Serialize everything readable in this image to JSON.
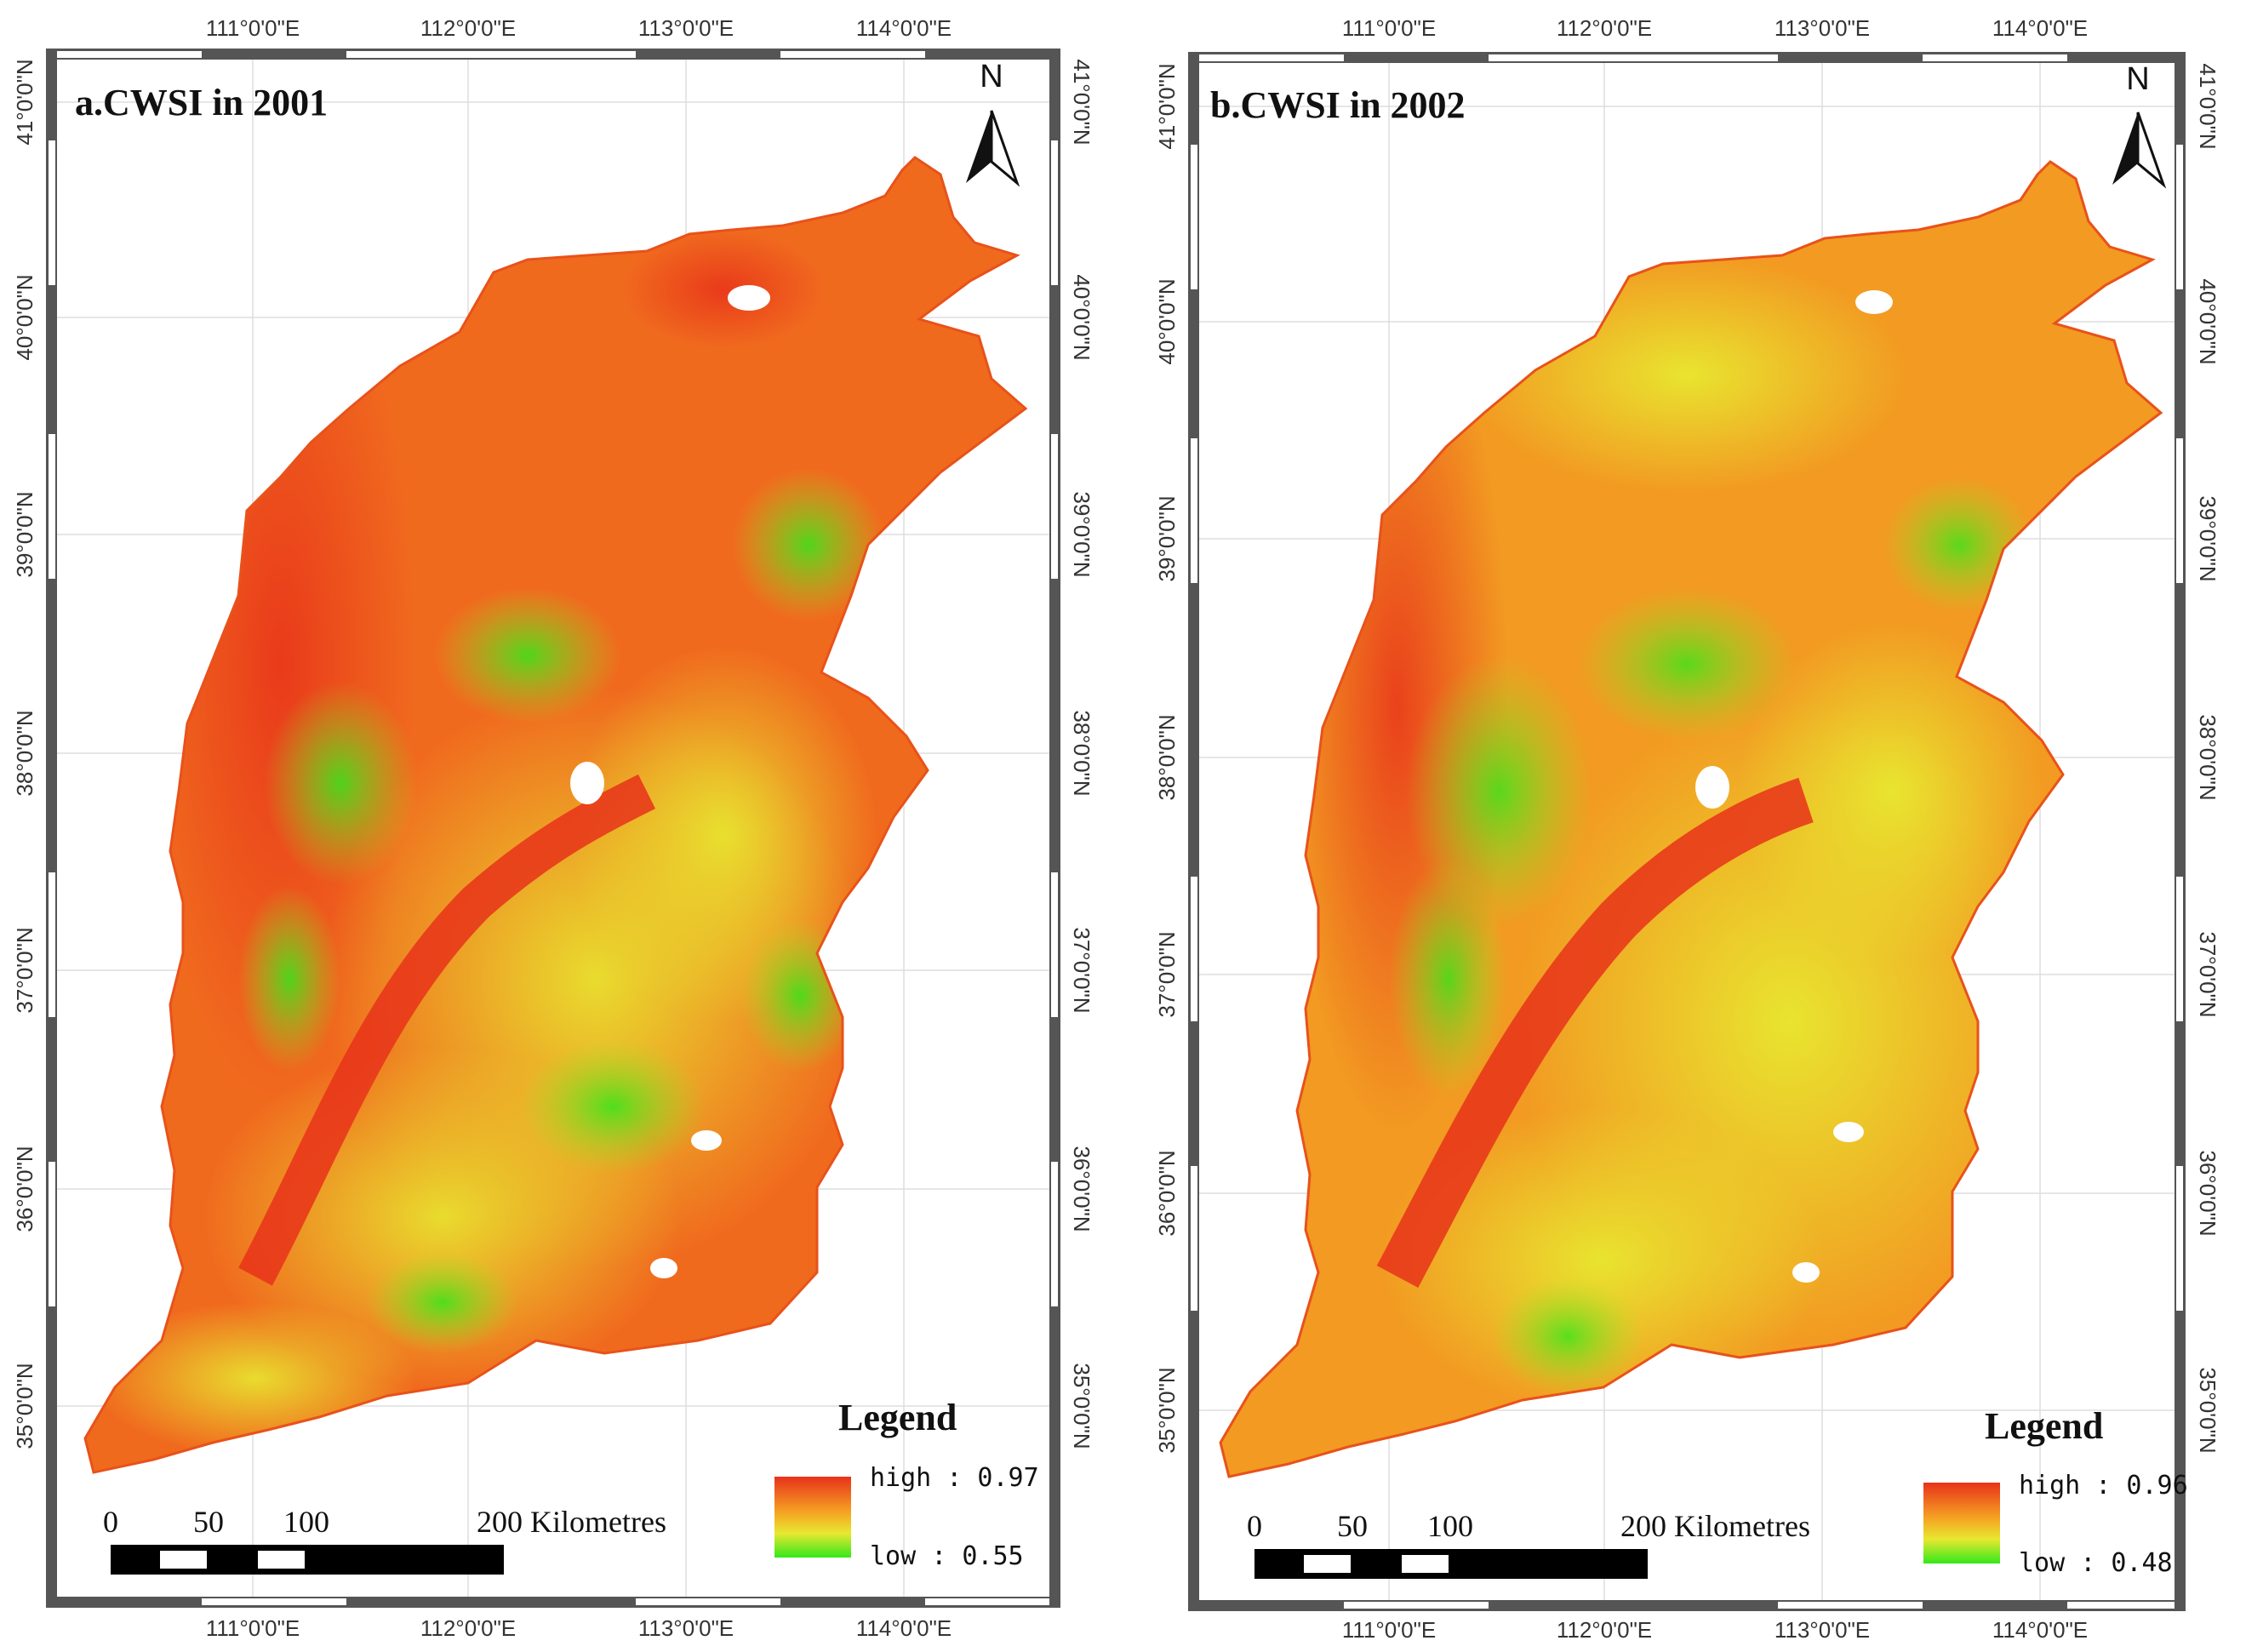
{
  "panels": [
    {
      "title": "a.CWSI in 2001",
      "north_label": "N",
      "lon_labels": [
        "111°0'0\"E",
        "112°0'0\"E",
        "113°0'0\"E",
        "114°0'0\"E"
      ],
      "lat_labels": [
        "41°0'0\"N",
        "40°0'0\"N",
        "39°0'0\"N",
        "38°0'0\"N",
        "37°0'0\"N",
        "36°0'0\"N",
        "35°0'0\"N"
      ],
      "legend": {
        "title": "Legend",
        "high_text": "high : 0.97",
        "low_text": "low : 0.55",
        "high_value": 0.97,
        "low_value": 0.55
      },
      "scalebar": {
        "ticks": [
          "0",
          "50",
          "100"
        ],
        "end_label": "200 Kilometres"
      }
    },
    {
      "title": "b.CWSI in 2002",
      "north_label": "N",
      "lon_labels": [
        "111°0'0\"E",
        "112°0'0\"E",
        "113°0'0\"E",
        "114°0'0\"E"
      ],
      "lat_labels": [
        "41°0'0\"N",
        "40°0'0\"N",
        "39°0'0\"N",
        "38°0'0\"N",
        "37°0'0\"N",
        "36°0'0\"N",
        "35°0'0\"N"
      ],
      "legend": {
        "title": "Legend",
        "high_text": "high : 0.96",
        "low_text": "low : 0.48",
        "high_value": 0.96,
        "low_value": 0.48
      },
      "scalebar": {
        "ticks": [
          "0",
          "50",
          "100"
        ],
        "end_label": "200 Kilometres"
      }
    }
  ],
  "colors": {
    "high": "#e8321a",
    "mid": "#f5a623",
    "yellow": "#e8e830",
    "low": "#33e81a",
    "frame": "#555555"
  }
}
